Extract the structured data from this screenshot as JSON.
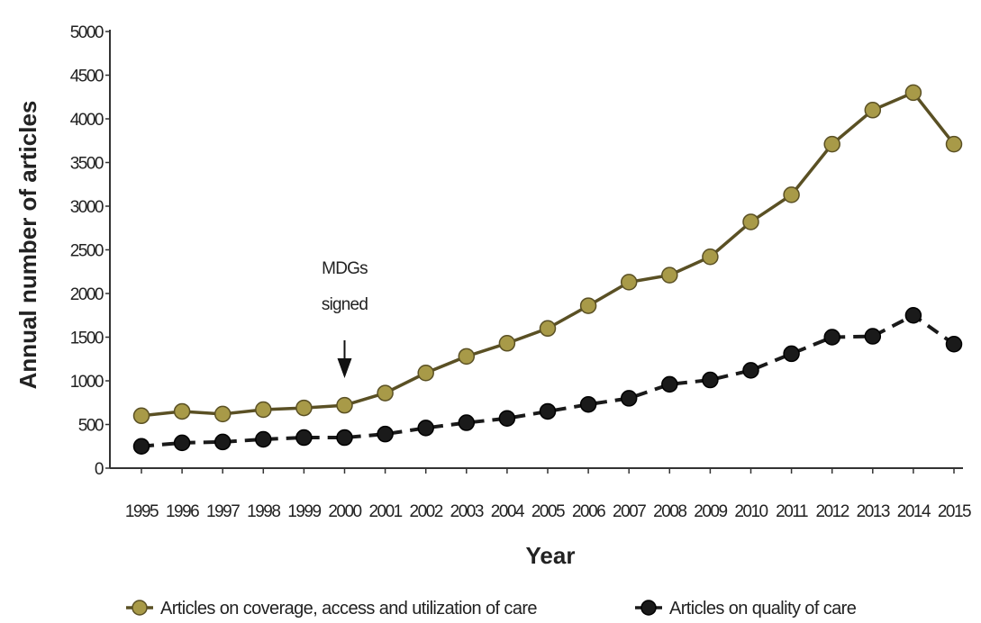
{
  "chart_data": {
    "type": "line",
    "title": "",
    "xlabel": "Year",
    "ylabel": "Annual number of articles",
    "categories": [
      "1995",
      "1996",
      "1997",
      "1998",
      "1999",
      "2000",
      "2001",
      "2002",
      "2003",
      "2004",
      "2005",
      "2006",
      "2007",
      "2008",
      "2009",
      "2010",
      "2011",
      "2012",
      "2013",
      "2014",
      "2015"
    ],
    "ylim": [
      0,
      5000
    ],
    "yticks": [
      0,
      500,
      1000,
      1500,
      2000,
      2500,
      3000,
      3500,
      4000,
      4500,
      5000
    ],
    "grid": false,
    "legend_position": "bottom",
    "series": [
      {
        "name": "Articles on coverage, access and utilization of care",
        "color": "#a89a48",
        "line_style": "solid",
        "values": [
          600,
          650,
          620,
          670,
          690,
          720,
          860,
          1090,
          1280,
          1430,
          1600,
          1860,
          2130,
          2210,
          2420,
          2820,
          3130,
          3710,
          4100,
          4300,
          3710
        ]
      },
      {
        "name": "Articles on quality of care",
        "color": "#1a1a1a",
        "line_style": "dashed",
        "values": [
          250,
          290,
          300,
          330,
          350,
          350,
          390,
          460,
          520,
          570,
          650,
          730,
          800,
          960,
          1010,
          1120,
          1310,
          1500,
          1510,
          1750,
          1420
        ]
      }
    ],
    "annotations": [
      {
        "text_lines": [
          "MDGs",
          "signed"
        ],
        "x": "2000",
        "y": 720,
        "marker": "arrow-down"
      }
    ]
  }
}
